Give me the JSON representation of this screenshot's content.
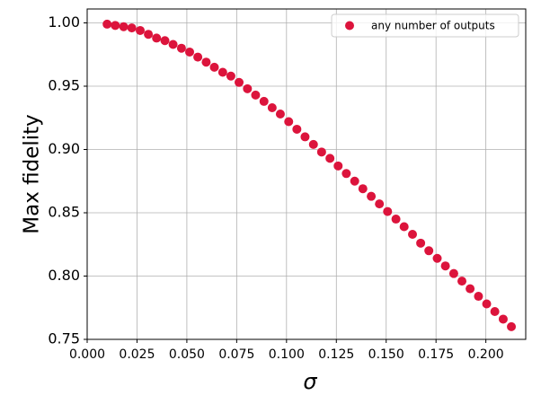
{
  "chart_data": {
    "type": "scatter",
    "xlabel": "σ",
    "ylabel": "Max fidelity",
    "series": [
      {
        "name": "any number of outputs",
        "color": "#dc143c",
        "x": [
          0.01,
          0.0141,
          0.0183,
          0.0224,
          0.0266,
          0.0307,
          0.0348,
          0.039,
          0.0431,
          0.0473,
          0.0514,
          0.0555,
          0.0597,
          0.0638,
          0.068,
          0.0721,
          0.0762,
          0.0804,
          0.0845,
          0.0887,
          0.0928,
          0.0969,
          0.1011,
          0.1052,
          0.1093,
          0.1135,
          0.1176,
          0.1218,
          0.1259,
          0.13,
          0.1342,
          0.1383,
          0.1425,
          0.1466,
          0.1507,
          0.1549,
          0.159,
          0.1632,
          0.1673,
          0.1714,
          0.1756,
          0.1797,
          0.1839,
          0.188,
          0.1921,
          0.1963,
          0.2004,
          0.2045,
          0.2087,
          0.2128
        ],
        "values": [
          0.999,
          0.998,
          0.997,
          0.996,
          0.994,
          0.991,
          0.988,
          0.986,
          0.983,
          0.98,
          0.977,
          0.973,
          0.969,
          0.965,
          0.961,
          0.958,
          0.953,
          0.948,
          0.943,
          0.938,
          0.933,
          0.928,
          0.922,
          0.916,
          0.91,
          0.904,
          0.898,
          0.893,
          0.887,
          0.881,
          0.875,
          0.869,
          0.863,
          0.857,
          0.851,
          0.845,
          0.839,
          0.833,
          0.826,
          0.82,
          0.814,
          0.808,
          0.802,
          0.796,
          0.79,
          0.784,
          0.778,
          0.772,
          0.766,
          0.76
        ]
      }
    ],
    "xlim": [
      0,
      0.22
    ],
    "ylim": [
      0.75,
      1.011
    ],
    "xticks": [
      {
        "value": 0,
        "label": "0.000"
      },
      {
        "value": 0.025,
        "label": "0.025"
      },
      {
        "value": 0.05,
        "label": "0.050"
      },
      {
        "value": 0.075,
        "label": "0.075"
      },
      {
        "value": 0.1,
        "label": "0.100"
      },
      {
        "value": 0.125,
        "label": "0.125"
      },
      {
        "value": 0.15,
        "label": "0.150"
      },
      {
        "value": 0.175,
        "label": "0.175"
      },
      {
        "value": 0.2,
        "label": "0.200"
      }
    ],
    "yticks": [
      {
        "value": 0.75,
        "label": "0.75"
      },
      {
        "value": 0.8,
        "label": "0.80"
      },
      {
        "value": 0.85,
        "label": "0.85"
      },
      {
        "value": 0.9,
        "label": "0.90"
      },
      {
        "value": 0.95,
        "label": "0.95"
      },
      {
        "value": 1.0,
        "label": "1.00"
      }
    ],
    "grid": true,
    "legend": "upper right"
  }
}
